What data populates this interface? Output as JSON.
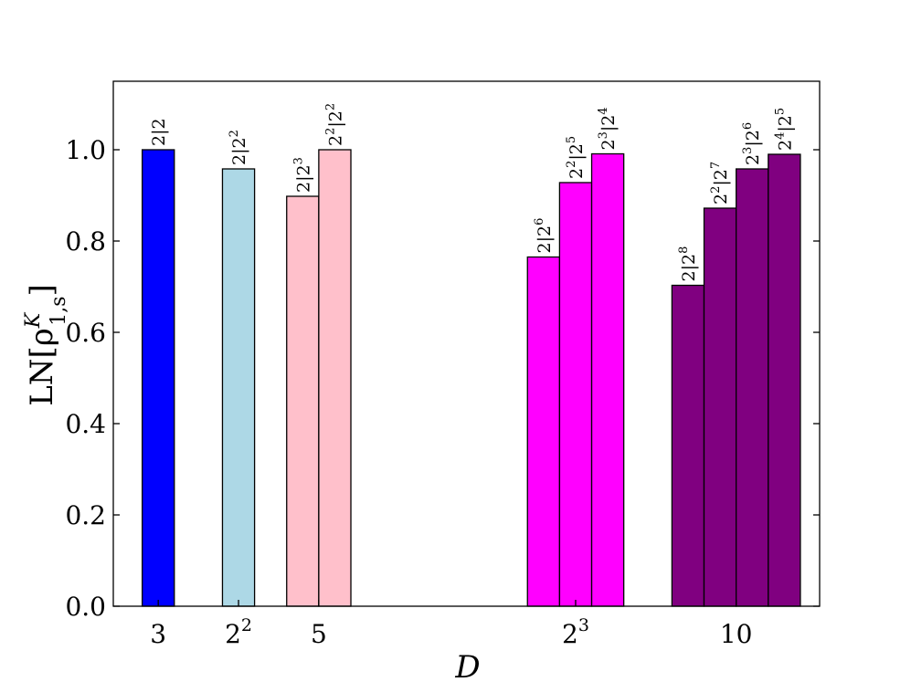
{
  "chart_data": {
    "type": "bar",
    "xlabel": "D",
    "ylabel": {
      "base": "LN[ρ",
      "sup": "K",
      "sub": "1,s",
      "close": "]"
    },
    "ylim": [
      0,
      1.15
    ],
    "yticks": [
      {
        "value": 0.0,
        "label": "0.0"
      },
      {
        "value": 0.2,
        "label": "0.2"
      },
      {
        "value": 0.4,
        "label": "0.4"
      },
      {
        "value": 0.6,
        "label": "0.6"
      },
      {
        "value": 0.8,
        "label": "0.8"
      },
      {
        "value": 1.0,
        "label": "1.0"
      }
    ],
    "xlim": [
      0.3,
      11.3
    ],
    "groups": [
      {
        "name": "3",
        "tick": {
          "base": "3",
          "sup": ""
        },
        "x": 1.0,
        "color": "#0000ff",
        "bars": [
          {
            "value": 1.0,
            "label": [
              {
                "b": "2",
                "s": ""
              },
              {
                "b": "|2",
                "s": ""
              }
            ]
          }
        ]
      },
      {
        "name": "4",
        "tick": {
          "base": "2",
          "sup": "2"
        },
        "x": 2.25,
        "color": "#add8e6",
        "bars": [
          {
            "value": 0.958,
            "label": [
              {
                "b": "2",
                "s": ""
              },
              {
                "b": "|2",
                "s": "2"
              }
            ]
          }
        ]
      },
      {
        "name": "5",
        "tick": {
          "base": "5",
          "sup": ""
        },
        "x": 3.5,
        "color": "#ffc0cb",
        "bars": [
          {
            "value": 0.898,
            "label": [
              {
                "b": "2",
                "s": ""
              },
              {
                "b": "|2",
                "s": "3"
              }
            ]
          },
          {
            "value": 1.0,
            "label": [
              {
                "b": "2",
                "s": "2"
              },
              {
                "b": "|2",
                "s": "2"
              }
            ]
          }
        ]
      },
      {
        "name": "8",
        "tick": {
          "base": "2",
          "sup": "3"
        },
        "x": 7.5,
        "color": "#ff00ff",
        "bars": [
          {
            "value": 0.765,
            "label": [
              {
                "b": "2",
                "s": ""
              },
              {
                "b": "|2",
                "s": "6"
              }
            ]
          },
          {
            "value": 0.928,
            "label": [
              {
                "b": "2",
                "s": "2"
              },
              {
                "b": "|2",
                "s": "5"
              }
            ]
          },
          {
            "value": 0.991,
            "label": [
              {
                "b": "2",
                "s": "3"
              },
              {
                "b": "|2",
                "s": "4"
              }
            ]
          }
        ]
      },
      {
        "name": "10",
        "tick": {
          "base": "10",
          "sup": ""
        },
        "x": 10.0,
        "color": "#800080",
        "bars": [
          {
            "value": 0.703,
            "label": [
              {
                "b": "2",
                "s": ""
              },
              {
                "b": "|2",
                "s": "8"
              }
            ]
          },
          {
            "value": 0.872,
            "label": [
              {
                "b": "2",
                "s": "2"
              },
              {
                "b": "|2",
                "s": "7"
              }
            ]
          },
          {
            "value": 0.958,
            "label": [
              {
                "b": "2",
                "s": "3"
              },
              {
                "b": "|2",
                "s": "6"
              }
            ]
          },
          {
            "value": 0.99,
            "label": [
              {
                "b": "2",
                "s": "4"
              },
              {
                "b": "|2",
                "s": "5"
              }
            ]
          }
        ]
      }
    ],
    "bar_width": 0.5,
    "grid": false,
    "legend": "none"
  }
}
